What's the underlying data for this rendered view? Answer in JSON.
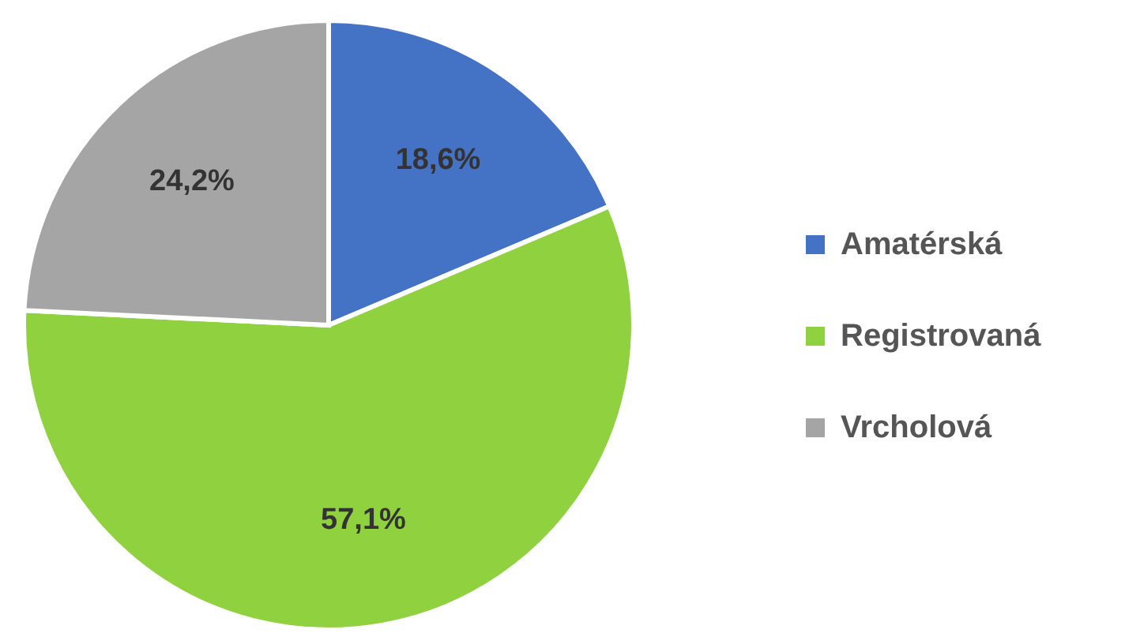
{
  "chart_data": {
    "type": "pie",
    "categories": [
      "Amatérská",
      "Registrovaná",
      "Vrcholová"
    ],
    "values": [
      18.6,
      57.1,
      24.2
    ],
    "colors": [
      "#4472c4",
      "#8fd13f",
      "#a5a5a5"
    ],
    "value_labels": [
      "18,6%",
      "57,1%",
      "24,2%"
    ],
    "legend": "right"
  }
}
